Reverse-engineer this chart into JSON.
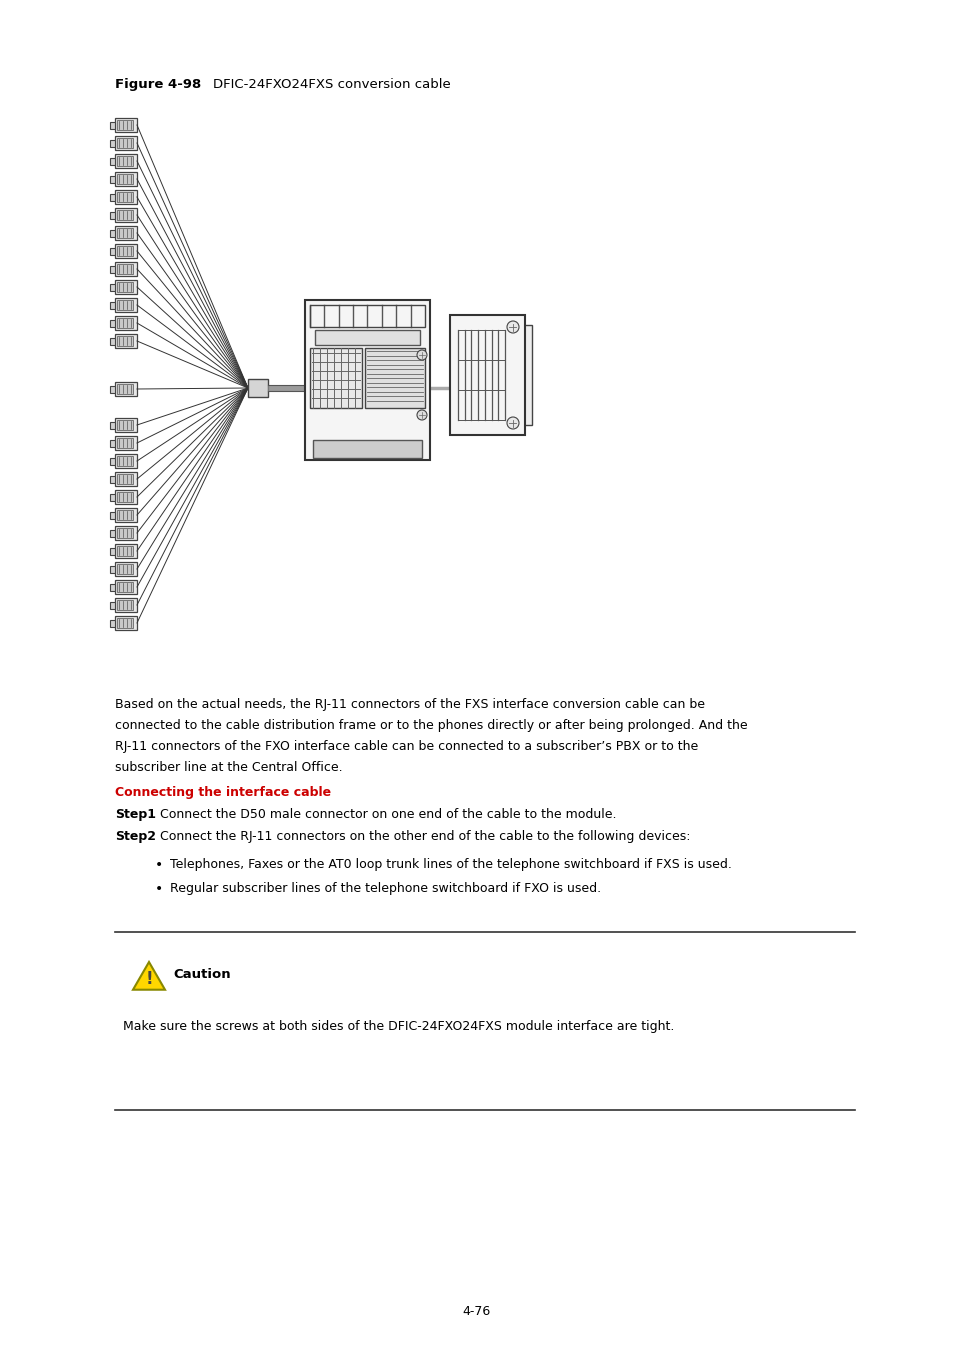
{
  "title_bold": "Figure 4-98",
  "title_normal": " DFIC-24FXO24FXS conversion cable",
  "para_lines": [
    "Based on the actual needs, the RJ-11 connectors of the FXS interface conversion cable can be",
    "connected to the cable distribution frame or to the phones directly or after being prolonged. And the",
    "RJ-11 connectors of the FXO interface cable can be connected to a subscriber’s PBX or to the",
    "subscriber line at the Central Office."
  ],
  "section_title": "Connecting the interface cable",
  "step1_bold": "Step1",
  "step1_text": "Connect the D50 male connector on one end of the cable to the module.",
  "step2_bold": "Step2",
  "step2_text": "Connect the RJ-11 connectors on the other end of the cable to the following devices:",
  "bullet1": "Telephones, Faxes or the AT0 loop trunk lines of the telephone switchboard if FXS is used.",
  "bullet2": "Regular subscriber lines of the telephone switchboard if FXO is used.",
  "caution_title": "Caution",
  "caution_text": "Make sure the screws at both sides of the DFIC-24FXO24FXS module interface are tight.",
  "page_num": "4-76",
  "bg_color": "#ffffff",
  "text_color": "#000000",
  "red_color": "#cc0000",
  "line_color": "#555555",
  "connector_fill": "#e8e8e8",
  "connector_edge": "#444444"
}
